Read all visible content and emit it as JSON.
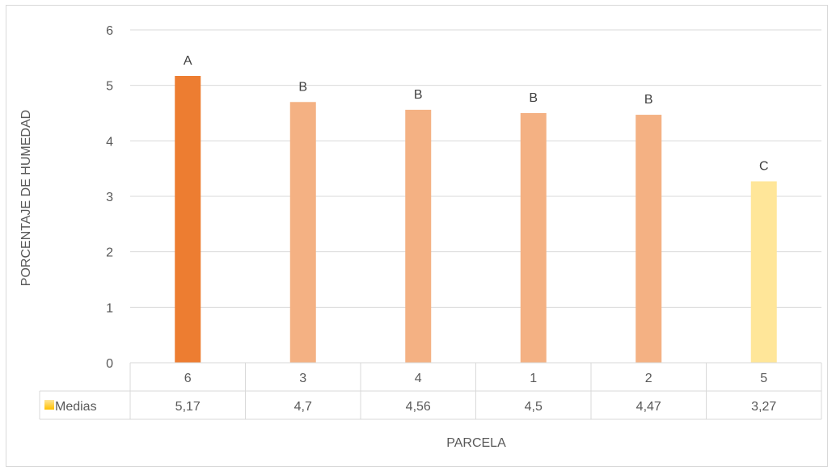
{
  "chart_data": {
    "type": "bar",
    "categories": [
      "6",
      "3",
      "4",
      "1",
      "2",
      "5"
    ],
    "series": [
      {
        "name": "Medias",
        "values": [
          5.17,
          4.7,
          4.56,
          4.5,
          4.47,
          3.27
        ],
        "value_labels": [
          "5,17",
          "4,7",
          "4,56",
          "4,5",
          "4,47",
          "3,27"
        ]
      }
    ],
    "bar_annotations": [
      "A",
      "B",
      "B",
      "B",
      "B",
      "C"
    ],
    "bar_colors": [
      "#ED7D31",
      "#F4B183",
      "#F4B183",
      "#F4B183",
      "#F4B183",
      "#FFE699"
    ],
    "legend_color": "#FFC000",
    "xlabel": "PARCELA",
    "ylabel": "PORCENTAJE DE HUMEDAD",
    "ylim": [
      0,
      6
    ],
    "yticks": [
      0,
      1,
      2,
      3,
      4,
      5,
      6
    ],
    "grid": true,
    "legend_position": "data-table"
  }
}
